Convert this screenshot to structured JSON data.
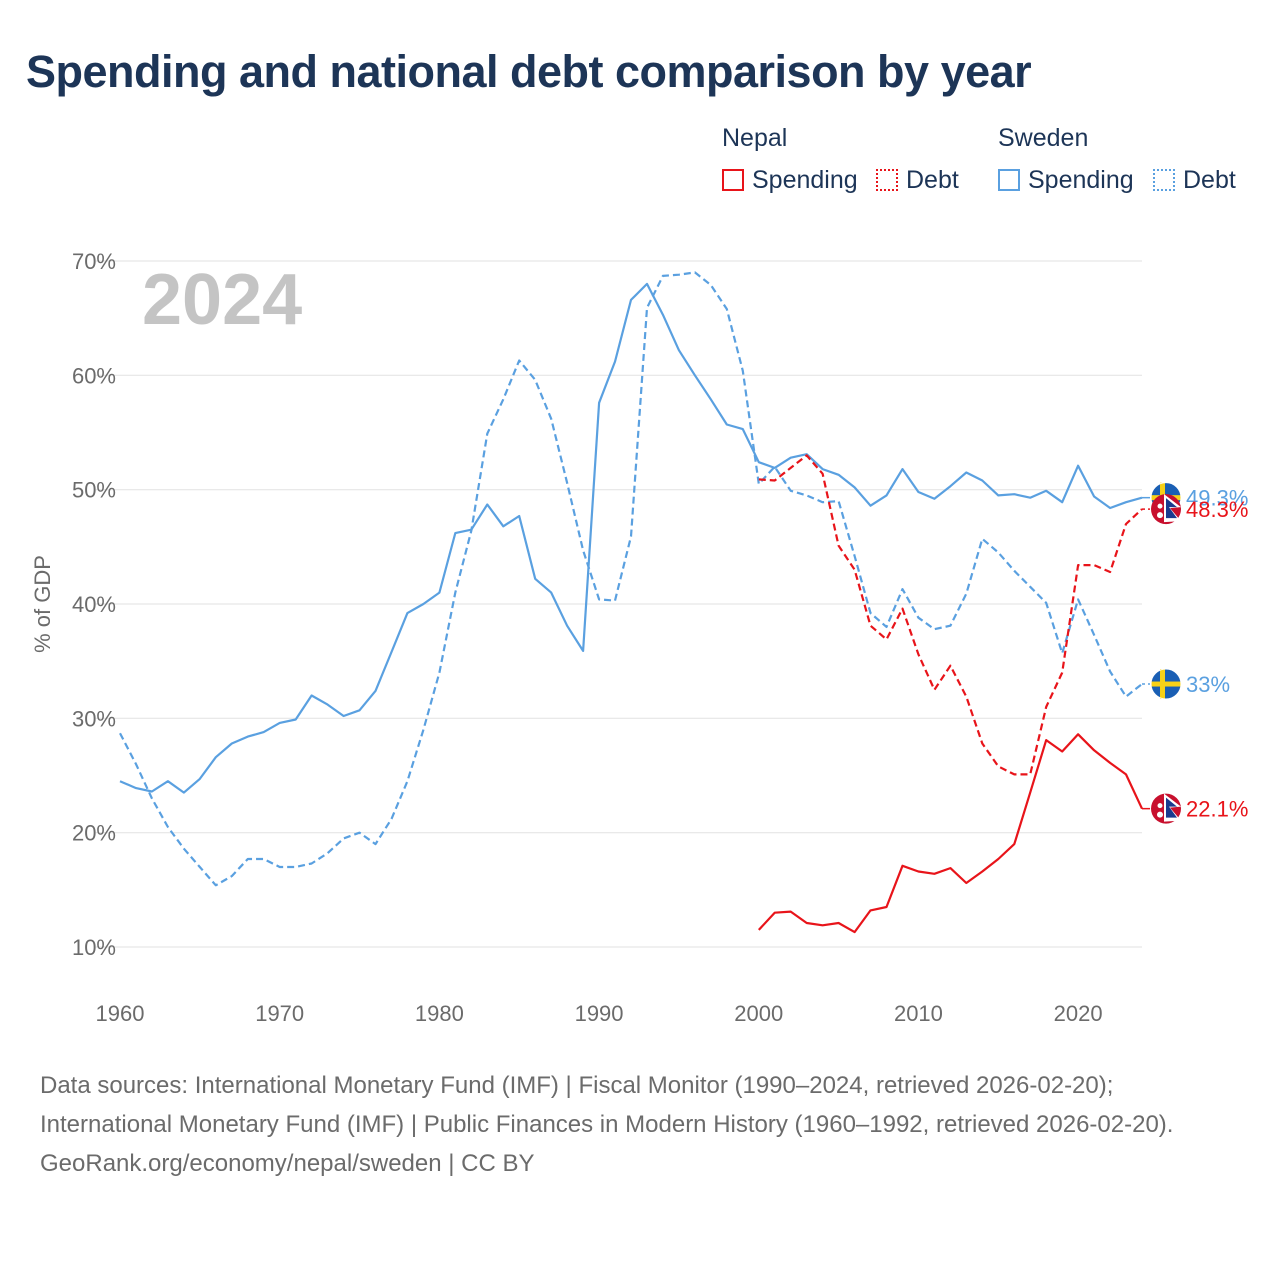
{
  "title": "Spending and national debt comparison by year",
  "legend": {
    "nepal": {
      "title": "Nepal",
      "spending": "Spending",
      "debt": "Debt"
    },
    "sweden": {
      "title": "Sweden",
      "spending": "Spending",
      "debt": "Debt"
    }
  },
  "year_watermark": "2024",
  "footer": {
    "sources": "Data sources: International Monetary Fund (IMF) | Fiscal Monitor (1990–2024, retrieved 2026-02-20); International Monetary Fund (IMF) | Public Finances in Modern History (1960–1992, retrieved 2026-02-20).",
    "credit": "GeoRank.org/economy/nepal/sweden | CC BY"
  },
  "colors": {
    "nepal": "#e8141a",
    "sweden": "#5aa0e0",
    "title": "#1d3557",
    "axis_text": "#6b6b6b",
    "grid": "#e6e6e6",
    "watermark": "#c4c4c4"
  },
  "chart_data": {
    "type": "line",
    "title": "Spending and national debt comparison by year",
    "xlabel": "",
    "ylabel": "% of GDP",
    "xlim": [
      1960,
      2024
    ],
    "ylim": [
      10,
      70
    ],
    "x_ticks": [
      1960,
      1970,
      1980,
      1990,
      2000,
      2010,
      2020
    ],
    "y_ticks": [
      10,
      20,
      30,
      40,
      50,
      60,
      70
    ],
    "y_tick_labels": [
      "10%",
      "20%",
      "30%",
      "40%",
      "50%",
      "60%",
      "70%"
    ],
    "series": [
      {
        "name": "Sweden Spending",
        "country": "sweden",
        "style": "solid",
        "end_label": "49.3%",
        "x": [
          1960,
          1961,
          1962,
          1963,
          1964,
          1965,
          1966,
          1967,
          1968,
          1969,
          1970,
          1971,
          1972,
          1973,
          1974,
          1975,
          1976,
          1977,
          1978,
          1979,
          1980,
          1981,
          1982,
          1983,
          1984,
          1985,
          1986,
          1987,
          1988,
          1989,
          1990,
          1991,
          1992,
          1993,
          1994,
          1995,
          1996,
          1997,
          1998,
          1999,
          2000,
          2001,
          2002,
          2003,
          2004,
          2005,
          2006,
          2007,
          2008,
          2009,
          2010,
          2011,
          2012,
          2013,
          2014,
          2015,
          2016,
          2017,
          2018,
          2019,
          2020,
          2021,
          2022,
          2023,
          2024
        ],
        "values": [
          24.5,
          23.9,
          23.6,
          24.5,
          23.5,
          24.7,
          26.6,
          27.8,
          28.4,
          28.8,
          29.6,
          29.9,
          32.0,
          31.2,
          30.2,
          30.7,
          32.4,
          35.8,
          39.2,
          40.0,
          41.0,
          46.2,
          46.5,
          48.7,
          46.8,
          47.7,
          42.2,
          41.0,
          38.1,
          35.9,
          57.6,
          61.2,
          66.6,
          68.0,
          65.3,
          62.2,
          60.0,
          57.9,
          55.7,
          55.3,
          52.4,
          51.9,
          52.8,
          53.1,
          51.8,
          51.3,
          50.2,
          48.6,
          49.5,
          51.8,
          49.8,
          49.2,
          50.3,
          51.5,
          50.8,
          49.5,
          49.6,
          49.3,
          49.9,
          48.9,
          52.1,
          49.4,
          48.4,
          48.9,
          49.3
        ]
      },
      {
        "name": "Sweden Debt",
        "country": "sweden",
        "style": "dashed",
        "end_label": "33%",
        "x": [
          1960,
          1961,
          1962,
          1963,
          1964,
          1965,
          1966,
          1967,
          1968,
          1969,
          1970,
          1971,
          1972,
          1973,
          1974,
          1975,
          1976,
          1977,
          1978,
          1979,
          1980,
          1981,
          1982,
          1983,
          1984,
          1985,
          1986,
          1987,
          1988,
          1989,
          1990,
          1991,
          1992,
          1993,
          1994,
          1995,
          1996,
          1997,
          1998,
          1999,
          2000,
          2001,
          2002,
          2003,
          2004,
          2005,
          2006,
          2007,
          2008,
          2009,
          2010,
          2011,
          2012,
          2013,
          2014,
          2015,
          2016,
          2017,
          2018,
          2019,
          2020,
          2021,
          2022,
          2023,
          2024
        ],
        "values": [
          28.7,
          26.0,
          23.0,
          20.5,
          18.6,
          17.0,
          15.4,
          16.2,
          17.7,
          17.7,
          17.0,
          17.0,
          17.3,
          18.2,
          19.5,
          20.0,
          19.0,
          21.2,
          24.5,
          29.0,
          34.0,
          41.0,
          46.4,
          54.9,
          57.9,
          61.3,
          59.6,
          56.2,
          50.6,
          44.7,
          40.4,
          40.3,
          45.9,
          65.9,
          68.7,
          68.8,
          69.0,
          67.9,
          65.8,
          60.4,
          50.5,
          52.0,
          49.9,
          49.5,
          48.9,
          49.0,
          44.2,
          39.2,
          38.0,
          41.3,
          38.8,
          37.8,
          38.1,
          40.9,
          45.7,
          44.5,
          42.9,
          41.5,
          40.1,
          35.7,
          40.4,
          37.3,
          34.1,
          31.9,
          33.0
        ]
      },
      {
        "name": "Nepal Spending",
        "country": "nepal",
        "style": "solid",
        "end_label": "22.1%",
        "x": [
          2000,
          2001,
          2002,
          2003,
          2004,
          2005,
          2006,
          2007,
          2008,
          2009,
          2010,
          2011,
          2012,
          2013,
          2014,
          2015,
          2016,
          2017,
          2018,
          2019,
          2020,
          2021,
          2022,
          2023,
          2024
        ],
        "values": [
          11.5,
          13.0,
          13.1,
          12.1,
          11.9,
          12.1,
          11.3,
          13.2,
          13.5,
          17.1,
          16.6,
          16.4,
          16.9,
          15.6,
          16.6,
          17.7,
          19.0,
          23.5,
          28.1,
          27.1,
          28.6,
          27.2,
          26.1,
          25.1,
          22.1
        ]
      },
      {
        "name": "Nepal Debt",
        "country": "nepal",
        "style": "dashed",
        "end_label": "48.3%",
        "x": [
          2000,
          2001,
          2002,
          2003,
          2004,
          2005,
          2006,
          2007,
          2008,
          2009,
          2010,
          2011,
          2012,
          2013,
          2014,
          2015,
          2016,
          2017,
          2018,
          2019,
          2020,
          2021,
          2022,
          2023,
          2024
        ],
        "values": [
          50.9,
          50.8,
          51.9,
          53.0,
          51.4,
          45.1,
          43.0,
          38.1,
          36.9,
          39.6,
          35.6,
          32.5,
          34.6,
          31.9,
          27.8,
          25.8,
          25.1,
          25.1,
          31.0,
          34.0,
          43.4,
          43.4,
          42.8,
          47.0,
          48.3
        ]
      }
    ]
  }
}
